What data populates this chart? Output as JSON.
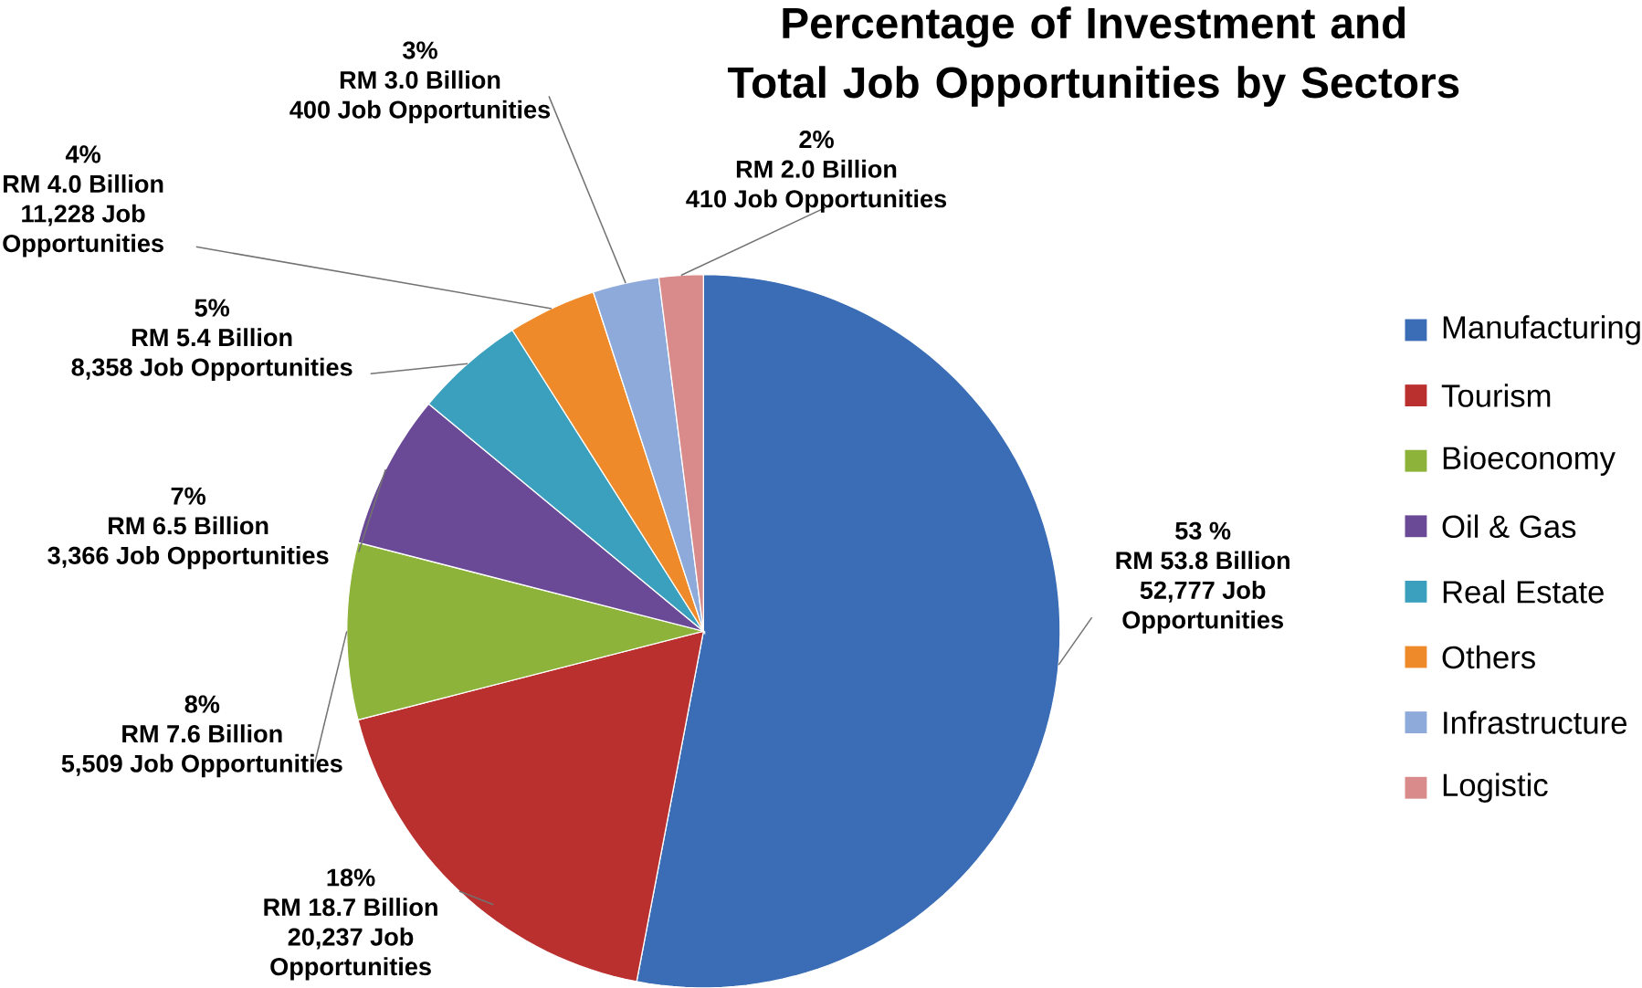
{
  "chart_data": {
    "type": "pie",
    "title": "Percentage of Investment and Total Job Opportunities by Sectors",
    "categories": [
      "Manufacturing",
      "Tourism",
      "Bioeconomy",
      "Oil & Gas",
      "Real Estate",
      "Others",
      "Infrastructure",
      "Logistic"
    ],
    "values": [
      53,
      18,
      8,
      7,
      5,
      4,
      3,
      2
    ],
    "colors": [
      "#3a6db5",
      "#b9302f",
      "#8db33a",
      "#6a4a96",
      "#3aa0bd",
      "#ef8a2a",
      "#8eaadb",
      "#d98a8a"
    ],
    "value_labels": [
      [
        "53 %",
        "RM 53.8 Billion",
        "52,777 Job",
        "Opportunities"
      ],
      [
        "18%",
        "RM 18.7 Billion",
        "20,237 Job",
        "Opportunities"
      ],
      [
        "8%",
        "RM 7.6 Billion",
        "5,509 Job Opportunities"
      ],
      [
        "7%",
        "RM 6.5 Billion",
        "3,366 Job Opportunities"
      ],
      [
        "5%",
        "RM 5.4 Billion",
        "8,358 Job Opportunities"
      ],
      [
        "4%",
        "RM 4.0 Billion",
        "11,228 Job",
        "Opportunities"
      ],
      [
        "3%",
        "RM 3.0 Billion",
        "400 Job Opportunities"
      ],
      [
        "2%",
        "RM 2.0 Billion",
        "410 Job Opportunities"
      ]
    ],
    "legend": "right"
  }
}
